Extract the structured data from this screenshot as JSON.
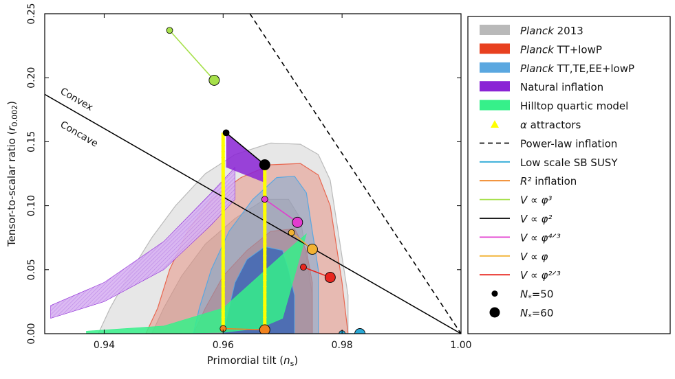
{
  "chart_data": {
    "type": "scatter",
    "xlabel": "Primordial tilt (",
    "xlabel_sym": "n",
    "xlabel_sub": "s",
    "xlabel_end": ")",
    "ylabel": "Tensor-to-scalar ratio (",
    "ylabel_sym": "r",
    "ylabel_sub": "0.002",
    "ylabel_end": ")",
    "xlim": [
      0.93,
      1.0
    ],
    "ylim": [
      0.0,
      0.25
    ],
    "xticks": [
      0.94,
      0.96,
      0.98,
      1.0
    ],
    "xtick_labels": [
      "0.94",
      "0.96",
      "0.98",
      "1.00"
    ],
    "yticks": [
      0.0,
      0.05,
      0.1,
      0.15,
      0.2,
      0.25
    ],
    "ytick_labels": [
      "0.00",
      "0.05",
      "0.10",
      "0.15",
      "0.20",
      "0.25"
    ],
    "annotations": [
      {
        "text": "Convex",
        "x": 0.9325,
        "y": 0.188
      },
      {
        "text": "Concave",
        "x": 0.9325,
        "y": 0.162
      }
    ],
    "contours": {
      "planck2013": {
        "color": "#b9b9b9",
        "outer": [
          [
            0.939,
            0.0
          ],
          [
            0.941,
            0.02
          ],
          [
            0.944,
            0.045
          ],
          [
            0.948,
            0.075
          ],
          [
            0.952,
            0.1
          ],
          [
            0.957,
            0.125
          ],
          [
            0.962,
            0.14
          ],
          [
            0.968,
            0.149
          ],
          [
            0.973,
            0.148
          ],
          [
            0.976,
            0.14
          ],
          [
            0.978,
            0.12
          ],
          [
            0.979,
            0.09
          ],
          [
            0.98,
            0.06
          ],
          [
            0.981,
            0.03
          ],
          [
            0.981,
            0.0
          ]
        ],
        "inner": [
          [
            0.948,
            0.0
          ],
          [
            0.95,
            0.02
          ],
          [
            0.953,
            0.045
          ],
          [
            0.957,
            0.07
          ],
          [
            0.962,
            0.09
          ],
          [
            0.967,
            0.105
          ],
          [
            0.971,
            0.105
          ],
          [
            0.973,
            0.09
          ],
          [
            0.974,
            0.06
          ],
          [
            0.975,
            0.03
          ],
          [
            0.975,
            0.0
          ]
        ]
      },
      "planck_tt_lowp": {
        "color": "#e8664f",
        "outer": [
          [
            0.947,
            0.0
          ],
          [
            0.949,
            0.02
          ],
          [
            0.951,
            0.05
          ],
          [
            0.954,
            0.08
          ],
          [
            0.958,
            0.105
          ],
          [
            0.963,
            0.122
          ],
          [
            0.968,
            0.132
          ],
          [
            0.973,
            0.133
          ],
          [
            0.976,
            0.124
          ],
          [
            0.978,
            0.1
          ],
          [
            0.979,
            0.07
          ],
          [
            0.98,
            0.04
          ],
          [
            0.981,
            0.0
          ]
        ],
        "inner": [
          [
            0.955,
            0.0
          ],
          [
            0.957,
            0.02
          ],
          [
            0.96,
            0.045
          ],
          [
            0.964,
            0.065
          ],
          [
            0.968,
            0.08
          ],
          [
            0.972,
            0.082
          ],
          [
            0.974,
            0.065
          ],
          [
            0.975,
            0.04
          ],
          [
            0.975,
            0.02
          ],
          [
            0.975,
            0.0
          ]
        ]
      },
      "planck_tt_te_ee_lowp": {
        "color": "#5aa7e0",
        "outer": [
          [
            0.955,
            0.0
          ],
          [
            0.956,
            0.02
          ],
          [
            0.958,
            0.05
          ],
          [
            0.961,
            0.08
          ],
          [
            0.965,
            0.105
          ],
          [
            0.969,
            0.122
          ],
          [
            0.972,
            0.123
          ],
          [
            0.974,
            0.11
          ],
          [
            0.975,
            0.08
          ],
          [
            0.976,
            0.05
          ],
          [
            0.976,
            0.02
          ],
          [
            0.976,
            0.0
          ]
        ],
        "inner": [
          [
            0.96,
            0.0
          ],
          [
            0.961,
            0.02
          ],
          [
            0.962,
            0.04
          ],
          [
            0.964,
            0.058
          ],
          [
            0.967,
            0.068
          ],
          [
            0.97,
            0.065
          ],
          [
            0.971,
            0.05
          ],
          [
            0.972,
            0.03
          ],
          [
            0.972,
            0.0
          ]
        ]
      }
    },
    "models": {
      "natural_inflation": {
        "color": "#8a23d5",
        "from": [
          [
            0.931,
            0.012
          ],
          [
            0.94,
            0.025
          ],
          [
            0.95,
            0.05
          ],
          [
            0.958,
            0.085
          ],
          [
            0.962,
            0.105
          ]
        ],
        "to": [
          [
            0.931,
            0.022
          ],
          [
            0.94,
            0.04
          ],
          [
            0.95,
            0.072
          ],
          [
            0.958,
            0.11
          ],
          [
            0.962,
            0.13
          ]
        ]
      },
      "hilltop_quartic": {
        "color": "#36f08a",
        "from": [
          [
            0.937,
            0.0
          ],
          [
            0.95,
            0.0
          ],
          [
            0.96,
            0.001
          ],
          [
            0.966,
            0.004
          ],
          [
            0.97,
            0.012
          ]
        ],
        "to": [
          [
            0.937,
            0.002
          ],
          [
            0.95,
            0.006
          ],
          [
            0.96,
            0.02
          ],
          [
            0.966,
            0.045
          ],
          [
            0.971,
            0.066
          ],
          [
            0.974,
            0.078
          ]
        ]
      }
    },
    "lines": {
      "power_law": {
        "style": "dashed",
        "color": "#000000",
        "points": [
          [
            0.9645,
            0.25
          ],
          [
            1.0,
            0.0
          ]
        ]
      },
      "convex_concave": {
        "style": "solid",
        "color": "#000000",
        "points": [
          [
            0.93,
            0.187
          ],
          [
            1.0,
            0.0
          ]
        ]
      },
      "low_scale_sb_susy": {
        "style": "solid",
        "color": "#2aa9d6",
        "points": [
          [
            0.98,
            0.0
          ],
          [
            0.983,
            0.0
          ]
        ]
      }
    },
    "series": [
      {
        "name": "V ∝ φ³",
        "color": "#a6e04a",
        "points": [
          [
            0.951,
            0.237
          ],
          [
            0.9585,
            0.198
          ]
        ]
      },
      {
        "name": "V ∝ φ²",
        "color": "#000000",
        "points": [
          [
            0.9605,
            0.157
          ],
          [
            0.967,
            0.132
          ]
        ]
      },
      {
        "name": "V ∝ φ^{4/3}",
        "color": "#e23ccf",
        "points": [
          [
            0.967,
            0.105
          ],
          [
            0.9725,
            0.087
          ]
        ]
      },
      {
        "name": "V ∝ φ",
        "color": "#f2b233",
        "points": [
          [
            0.9715,
            0.079
          ],
          [
            0.975,
            0.066
          ]
        ]
      },
      {
        "name": "V ∝ φ^{2/3}",
        "color": "#e8261f",
        "points": [
          [
            0.9735,
            0.052
          ],
          [
            0.978,
            0.044
          ]
        ]
      },
      {
        "name": "R² inflation",
        "color": "#f0821f",
        "points": [
          [
            0.96,
            0.004
          ],
          [
            0.967,
            0.003
          ]
        ]
      },
      {
        "name": "Low scale SB SUSY",
        "color": "#2aa9d6",
        "points": [
          [
            0.98,
            0.0
          ],
          [
            0.983,
            0.0
          ]
        ]
      }
    ],
    "alpha_attractors": {
      "color": "#ffff00",
      "x_values": [
        0.96,
        0.967
      ],
      "y_from": 0.004,
      "y_to": [
        0.157,
        0.132
      ]
    },
    "legend": {
      "placement": "right",
      "items": [
        {
          "kind": "patch",
          "color": "#b9b9b9",
          "label_italic": "Planck",
          "label": "2013"
        },
        {
          "kind": "patch",
          "color": "#e8401f",
          "label_italic": "Planck",
          "label": "TT+lowP"
        },
        {
          "kind": "patch",
          "color": "#5aa7e0",
          "label_italic": "Planck",
          "label": "TT,TE,EE+lowP"
        },
        {
          "kind": "patch",
          "color": "#8a23d5",
          "label_italic": "",
          "label": "Natural inflation"
        },
        {
          "kind": "patch",
          "color": "#36f08a",
          "label_italic": "",
          "label": "Hilltop quartic model"
        },
        {
          "kind": "triangle",
          "color": "#ffff00",
          "label_italic": "α",
          "label": "attractors"
        },
        {
          "kind": "dash",
          "color": "#000000",
          "label_italic": "",
          "label": "Power-law inflation"
        },
        {
          "kind": "line",
          "color": "#2aa9d6",
          "label_italic": "",
          "label": "Low scale SB SUSY"
        },
        {
          "kind": "line",
          "color": "#f0821f",
          "label_italic": "R²",
          "label": "inflation"
        },
        {
          "kind": "line",
          "color": "#a6e04a",
          "label_italic": "V ∝ φ³",
          "label": ""
        },
        {
          "kind": "line",
          "color": "#000000",
          "label_italic": "V ∝ φ²",
          "label": ""
        },
        {
          "kind": "line",
          "color": "#e23ccf",
          "label_italic": "V ∝ φ⁴ᐟ³",
          "label": ""
        },
        {
          "kind": "line",
          "color": "#f2b233",
          "label_italic": "V ∝ φ",
          "label": ""
        },
        {
          "kind": "line",
          "color": "#e8261f",
          "label_italic": "V ∝ φ²ᐟ³",
          "label": ""
        },
        {
          "kind": "dot_small",
          "color": "#000000",
          "label_italic": "N",
          "label": "=50"
        },
        {
          "kind": "dot_large",
          "color": "#000000",
          "label_italic": "N",
          "label": "=60"
        }
      ]
    }
  }
}
